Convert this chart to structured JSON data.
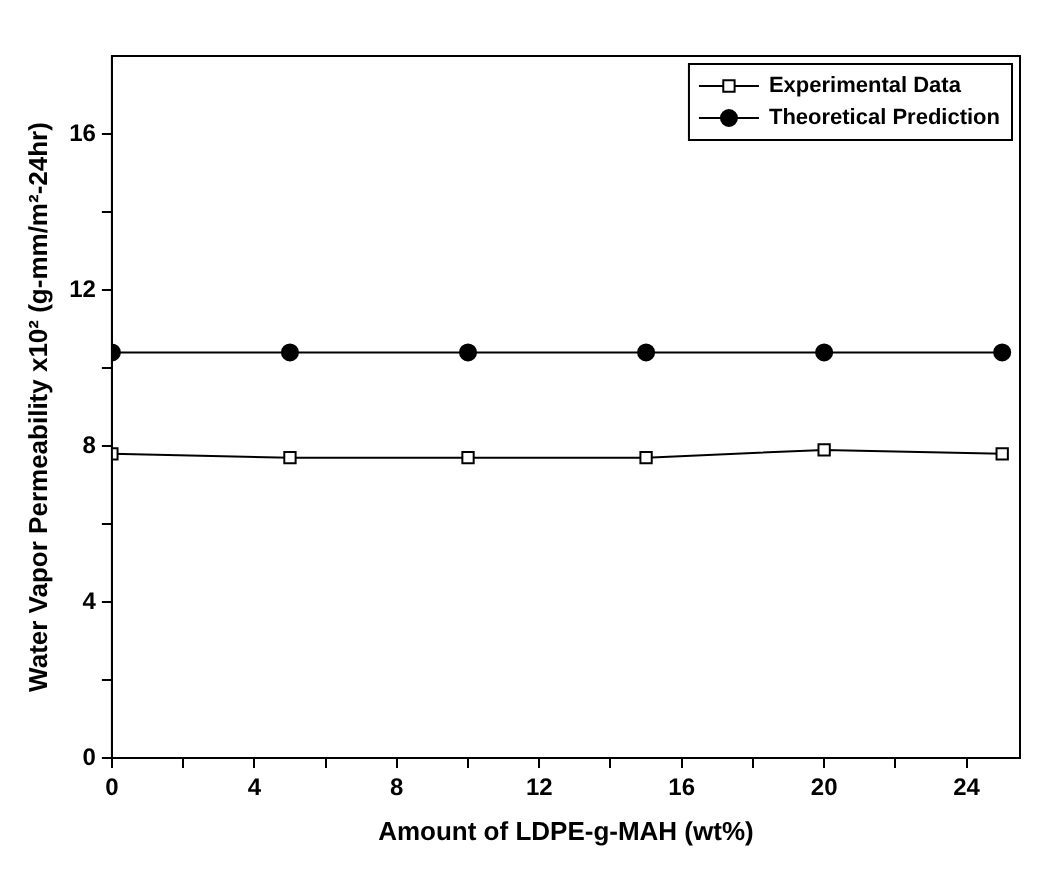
{
  "chart_data": {
    "type": "line",
    "xlabel": "Amount of LDPE-g-MAH (wt%)",
    "ylabel": "Water Vapor Permeability x10² (g-mm/m²-24hr)",
    "x": [
      0,
      5,
      10,
      15,
      20,
      25
    ],
    "series": [
      {
        "name": "Experimental Data",
        "color": "#000000",
        "marker": "square",
        "values": [
          7.8,
          7.7,
          7.7,
          7.7,
          7.9,
          7.8
        ]
      },
      {
        "name": "Theoretical Prediction",
        "color": "#000000",
        "marker": "circle",
        "values": [
          10.4,
          10.4,
          10.4,
          10.4,
          10.4,
          10.4
        ]
      }
    ],
    "xlim": [
      0,
      25.5
    ],
    "xticks": [
      0,
      {
        "value": 2,
        "label": null
      },
      4,
      {
        "value": 6,
        "label": null
      },
      8,
      {
        "value": 10,
        "label": null
      },
      12,
      {
        "value": 14,
        "label": null
      },
      16,
      {
        "value": 18,
        "label": null
      },
      20,
      {
        "value": 22,
        "label": null
      },
      24
    ],
    "ylim": [
      0,
      18
    ],
    "yticks": [
      0,
      {
        "value": 2,
        "label": null
      },
      4,
      {
        "value": 6,
        "label": null
      },
      8,
      {
        "value": 10,
        "label": null
      },
      12,
      {
        "value": 14,
        "label": null
      },
      16
    ],
    "grid": false,
    "legend": "top right",
    "line_style": "solid"
  }
}
